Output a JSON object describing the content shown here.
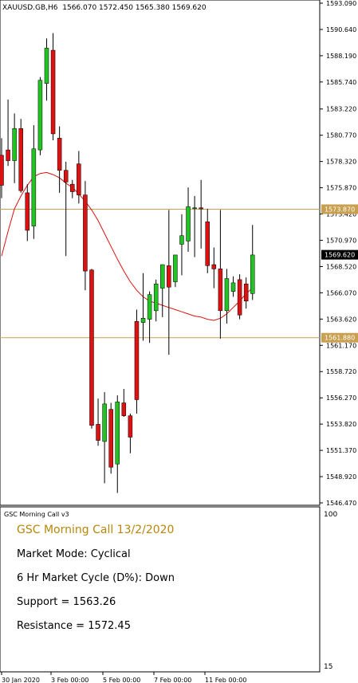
{
  "header": {
    "symbol": "XAUUSD.GB,H6",
    "ohlc": "1566.070 1572.450 1565.380 1569.620"
  },
  "indicator": {
    "title": "GSC Morning Call v3",
    "scale_top": "100",
    "scale_bottom": "15",
    "heading": "GSC Morning Call 13/2/2020",
    "lines": [
      "Market Mode: Cyclical",
      "6 Hr Market Cycle (D%): Down",
      "Support = 1563.26",
      "Resistance = 1572.45"
    ],
    "heading_color": "#b8860b"
  },
  "chart_data": {
    "type": "candlestick",
    "symbol": "XAUUSD.GB",
    "timeframe": "H6",
    "ylim": [
      1546.47,
      1593.09
    ],
    "y_ticks": [
      "1593.090",
      "1590.640",
      "1588.190",
      "1585.740",
      "1583.220",
      "1580.770",
      "1578.320",
      "1575.870",
      "1573.420",
      "1570.970",
      "1568.520",
      "1566.070",
      "1563.620",
      "1561.170",
      "1558.720",
      "1556.270",
      "1553.820",
      "1551.370",
      "1548.920",
      "1546.470"
    ],
    "x_labels": [
      "30 Jan 2020",
      "3 Feb 00:00",
      "5 Feb 00:00",
      "7 Feb 00:00",
      "11 Feb 00:00"
    ],
    "current_price": "1569.620",
    "levels": [
      {
        "label": "1573.870",
        "value": 1573.87,
        "color": "#c8a050"
      },
      {
        "label": "1561.880",
        "value": 1561.88,
        "color": "#c8a050"
      }
    ],
    "colors": {
      "up": "#22c322",
      "down": "#dd1111",
      "ma": "#dd1111",
      "level": "#c8a050",
      "axis": "#000000"
    },
    "candles": [
      [
        1578.9,
        1580.5,
        1574.9,
        1576.1
      ],
      [
        1579.4,
        1584.1,
        1577.9,
        1578.4
      ],
      [
        1578.4,
        1582.8,
        1576.3,
        1581.4
      ],
      [
        1581.4,
        1582.3,
        1575.4,
        1575.6
      ],
      [
        1575.4,
        1576.2,
        1570.9,
        1571.9
      ],
      [
        1572.3,
        1581.7,
        1571.1,
        1579.5
      ],
      [
        1579.4,
        1586.2,
        1578.9,
        1585.9
      ],
      [
        1585.6,
        1589.8,
        1584.0,
        1588.9
      ],
      [
        1588.7,
        1590.3,
        1580.3,
        1580.9
      ],
      [
        1580.5,
        1581.6,
        1575.4,
        1577.5
      ],
      [
        1577.5,
        1578.3,
        1569.5,
        1576.4
      ],
      [
        1576.2,
        1576.6,
        1574.9,
        1575.5
      ],
      [
        1578.1,
        1579.3,
        1574.4,
        1575.2
      ],
      [
        1575.2,
        1576.5,
        1566.3,
        1568.1
      ],
      [
        1568.2,
        1568.3,
        1553.4,
        1553.7
      ],
      [
        1553.8,
        1556.2,
        1551.8,
        1552.3
      ],
      [
        1552.2,
        1556.8,
        1548.3,
        1555.7
      ],
      [
        1555.2,
        1555.8,
        1549.2,
        1549.8
      ],
      [
        1550.1,
        1556.5,
        1547.4,
        1555.9
      ],
      [
        1555.8,
        1557.1,
        1554.5,
        1554.6
      ],
      [
        1554.6,
        1554.8,
        1551.1,
        1552.6
      ],
      [
        1563.4,
        1564.5,
        1554.8,
        1556.1
      ],
      [
        1563.3,
        1567.9,
        1561.6,
        1563.7
      ],
      [
        1563.6,
        1566.2,
        1561.4,
        1565.9
      ],
      [
        1564.4,
        1567.3,
        1563.4,
        1566.9
      ],
      [
        1566.5,
        1568.5,
        1563.8,
        1568.7
      ],
      [
        1568.6,
        1573.8,
        1560.3,
        1566.6
      ],
      [
        1567.1,
        1569.2,
        1566.6,
        1569.6
      ],
      [
        1570.6,
        1573.4,
        1567.7,
        1571.4
      ],
      [
        1570.9,
        1575.9,
        1569.9,
        1574.1
      ],
      [
        1574.0,
        1575.1,
        1569.4,
        1574.0
      ],
      [
        1574.0,
        1576.6,
        1570.2,
        1573.9
      ],
      [
        1572.7,
        1573.9,
        1567.9,
        1568.6
      ],
      [
        1568.7,
        1570.3,
        1566.5,
        1568.3
      ],
      [
        1568.3,
        1573.8,
        1561.8,
        1564.4
      ],
      [
        1564.4,
        1568.3,
        1563.2,
        1567.4
      ],
      [
        1566.2,
        1567.6,
        1565.7,
        1567.0
      ],
      [
        1567.3,
        1567.8,
        1563.6,
        1564.0
      ],
      [
        1566.9,
        1567.5,
        1564.6,
        1565.3
      ],
      [
        1566.0,
        1572.4,
        1565.4,
        1569.6
      ]
    ],
    "ma": [
      1569.5,
      1571.8,
      1573.9,
      1575.1,
      1576.1,
      1576.9,
      1577.2,
      1577.3,
      1577.1,
      1576.8,
      1576.3,
      1575.9,
      1575.3,
      1574.6,
      1573.8,
      1572.8,
      1571.6,
      1570.4,
      1569.2,
      1568.1,
      1567.1,
      1566.3,
      1565.7,
      1565.3,
      1565.1,
      1564.9,
      1564.7,
      1564.5,
      1564.3,
      1564.1,
      1563.9,
      1563.8,
      1563.6,
      1563.5,
      1563.7,
      1564.1,
      1564.7,
      1565.3,
      1566.0,
      1566.5
    ]
  }
}
